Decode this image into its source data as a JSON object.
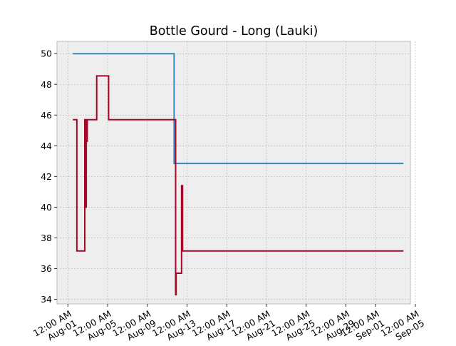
{
  "chart_data": {
    "type": "line",
    "drawstyle": "steps-post",
    "title": "Bottle Gourd - Long (Lauki)",
    "xlabel": "",
    "ylabel": "",
    "ylim": [
      33.7,
      50.8
    ],
    "xlim_days_from_aug01": [
      -1.1,
      34.5
    ],
    "grid": true,
    "yticks": [
      34,
      36,
      38,
      40,
      42,
      44,
      46,
      48,
      50
    ],
    "xticks": [
      {
        "day": 0,
        "label": [
          "12:00 AM",
          "Aug-01"
        ]
      },
      {
        "day": 4,
        "label": [
          "12:00 AM",
          "Aug-05"
        ]
      },
      {
        "day": 8,
        "label": [
          "12:00 AM",
          "Aug-09"
        ]
      },
      {
        "day": 12,
        "label": [
          "12:00 AM",
          "Aug-13"
        ]
      },
      {
        "day": 16,
        "label": [
          "12:00 AM",
          "Aug-17"
        ]
      },
      {
        "day": 20,
        "label": [
          "12:00 AM",
          "Aug-21"
        ]
      },
      {
        "day": 24,
        "label": [
          "12:00 AM",
          "Aug-25"
        ]
      },
      {
        "day": 28,
        "label": [
          "12:00 AM",
          "Aug-29"
        ]
      },
      {
        "day": 31,
        "label": [
          "12:00 AM",
          "Sep-01"
        ]
      },
      {
        "day": 35,
        "label": [
          "12:00 AM",
          "Sep-05"
        ]
      }
    ],
    "series": [
      {
        "name": "series-blue",
        "color": "#348ABD",
        "points": [
          [
            0.5,
            50.0
          ],
          [
            10.7,
            50.0
          ],
          [
            10.7,
            42.85
          ],
          [
            33.8,
            42.85
          ]
        ]
      },
      {
        "name": "series-red",
        "color": "#A60628",
        "points": [
          [
            0.5,
            45.7
          ],
          [
            0.9,
            45.7
          ],
          [
            0.9,
            37.15
          ],
          [
            1.7,
            37.15
          ],
          [
            1.7,
            45.7
          ],
          [
            1.8,
            45.7
          ],
          [
            1.8,
            40.0
          ],
          [
            1.85,
            40.0
          ],
          [
            1.85,
            45.7
          ],
          [
            1.9,
            45.7
          ],
          [
            1.9,
            44.3
          ],
          [
            1.95,
            44.3
          ],
          [
            1.95,
            45.7
          ],
          [
            2.9,
            45.7
          ],
          [
            2.9,
            48.55
          ],
          [
            4.1,
            48.55
          ],
          [
            4.1,
            45.7
          ],
          [
            10.85,
            45.7
          ],
          [
            10.85,
            34.3
          ],
          [
            10.9,
            34.3
          ],
          [
            10.9,
            35.7
          ],
          [
            11.45,
            35.7
          ],
          [
            11.45,
            41.4
          ],
          [
            11.55,
            41.4
          ],
          [
            11.55,
            37.15
          ],
          [
            33.8,
            37.15
          ]
        ]
      }
    ]
  }
}
